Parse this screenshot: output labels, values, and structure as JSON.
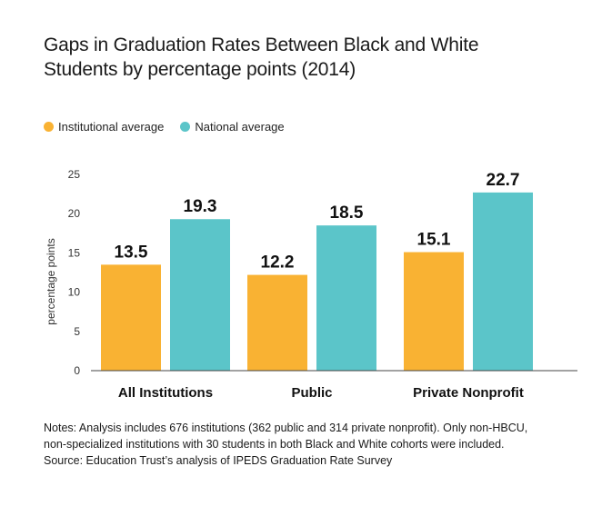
{
  "title_lines": [
    "Gaps in Graduation Rates Between Black and White",
    "Students by percentage points (2014)"
  ],
  "legend": [
    {
      "label": "Institutional average",
      "color": "#F9B233"
    },
    {
      "label": "National average",
      "color": "#5BC5C9"
    }
  ],
  "notes": [
    "Notes: Analysis includes 676 institutions (362 public and 314 private nonprofit). Only non-HBCU,",
    "non-specialized institutions with 30 students in both Black and White cohorts were included.",
    "Source: Education Trust’s analysis of IPEDS Graduation Rate Survey"
  ],
  "chart_data": {
    "type": "bar",
    "title": "Gaps in Graduation Rates Between Black and White Students by percentage points (2014)",
    "categories": [
      "All Institutions",
      "Public",
      "Private Nonprofit"
    ],
    "series": [
      {
        "name": "Institutional average",
        "values": [
          13.5,
          12.2,
          15.1
        ],
        "color": "#F9B233"
      },
      {
        "name": "National average",
        "values": [
          19.3,
          18.5,
          22.7
        ],
        "color": "#5BC5C9"
      }
    ],
    "xlabel": "",
    "ylabel": "percentage points",
    "ylim": [
      0,
      25
    ],
    "yticks": [
      0,
      5,
      10,
      15,
      20,
      25
    ],
    "grid": false,
    "legend_position": "top-left",
    "data_labels": true
  }
}
